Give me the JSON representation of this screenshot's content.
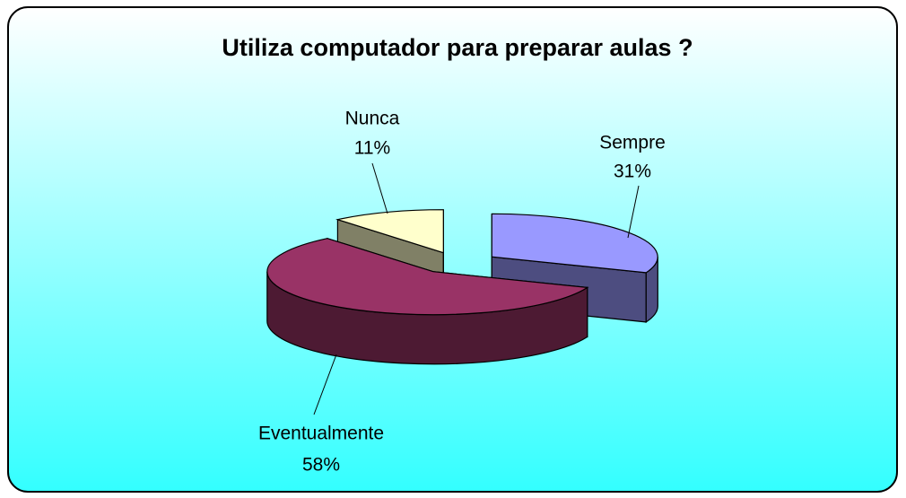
{
  "chart_data": {
    "type": "pie",
    "title": "Utiliza computador para preparar aulas ?",
    "categories": [
      "Sempre",
      "Eventualmente",
      "Nunca"
    ],
    "values": [
      31,
      58,
      11
    ],
    "value_labels": [
      "31%",
      "58%",
      "11%"
    ],
    "colors": [
      "#9999ff",
      "#993366",
      "#ffffcc"
    ],
    "three_d": true,
    "exploded": true
  }
}
